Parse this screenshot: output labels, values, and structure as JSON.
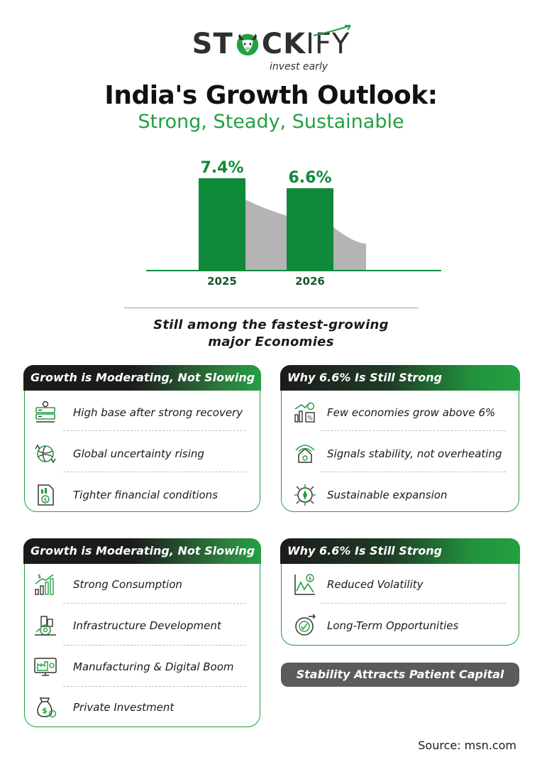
{
  "brand": {
    "name_part1": "ST",
    "name_part2": "CK",
    "name_part3": "IFY",
    "tagline": "invest early",
    "accent_color": "#23a041",
    "dark_color": "#1b1b1b"
  },
  "title": "India's Growth Outlook:",
  "subtitle": "Strong, Steady, Sustainable",
  "chart_data": {
    "type": "bar",
    "categories": [
      "2025",
      "2026"
    ],
    "values": [
      7.4,
      6.6
    ],
    "value_labels": [
      "7.4%",
      "6.6%"
    ],
    "bar_color": "#0f8a3a",
    "trend_color": "#b5b3b4",
    "title": "",
    "xlabel": "",
    "ylabel": ""
  },
  "tagline2": {
    "line1": "Still among the fastest-growing",
    "line2": "major Economies"
  },
  "cards": [
    {
      "title": "Growth is Moderating, Not Slowing",
      "items": [
        {
          "icon": "server-stack-icon",
          "label": "High base after strong recovery"
        },
        {
          "icon": "globe-refresh-icon",
          "label": "Global uncertainty rising"
        },
        {
          "icon": "finance-report-icon",
          "label": "Tighter financial conditions"
        }
      ]
    },
    {
      "title": "Why 6.6% Is Still Strong",
      "items": [
        {
          "icon": "growth-chart-icon",
          "label": "Few economies grow above 6%"
        },
        {
          "icon": "signal-house-icon",
          "label": "Signals stability, not overheating"
        },
        {
          "icon": "compass-expansion-icon",
          "label": "Sustainable expansion"
        }
      ]
    },
    {
      "title": "Growth is Moderating, Not Slowing",
      "items": [
        {
          "icon": "rising-bars-icon",
          "label": "Strong Consumption"
        },
        {
          "icon": "infrastructure-gear-icon",
          "label": "Infrastructure Development"
        },
        {
          "icon": "factory-monitor-icon",
          "label": "Manufacturing & Digital Boom"
        },
        {
          "icon": "money-bag-icon",
          "label": "Private Investment"
        }
      ]
    },
    {
      "title": "Why 6.6% Is Still Strong",
      "items": [
        {
          "icon": "volatility-chart-icon",
          "label": "Reduced Volatility"
        },
        {
          "icon": "long-term-dial-icon",
          "label": "Long-Term Opportunities"
        }
      ]
    }
  ],
  "pill": "Stability Attracts Patient Capital",
  "source": "Source: msn.com"
}
